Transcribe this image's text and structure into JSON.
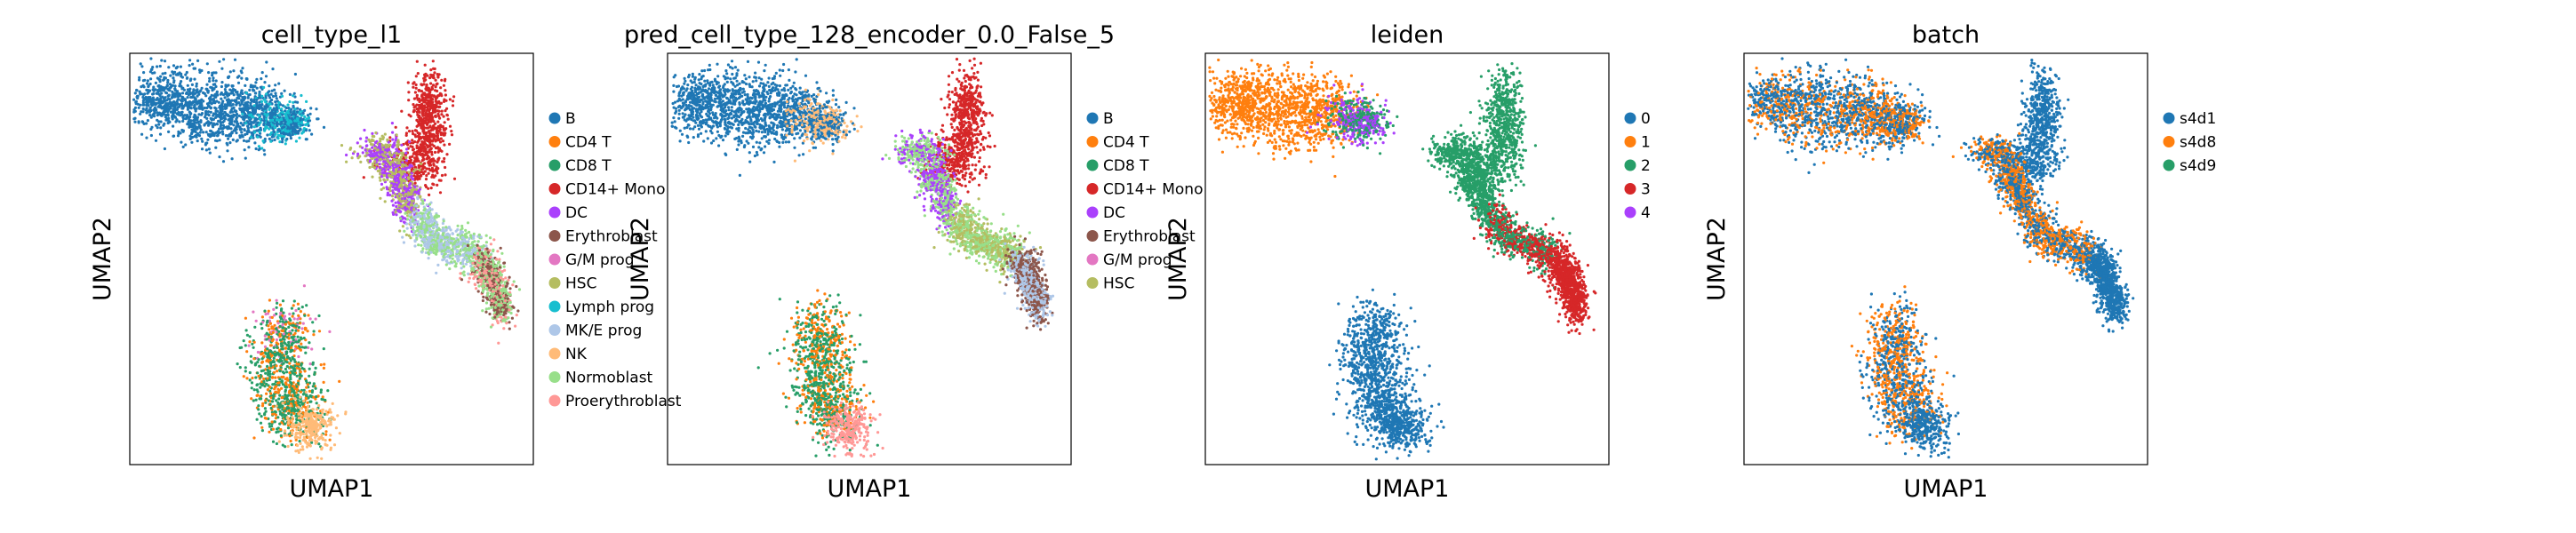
{
  "chart_data": [
    {
      "type": "scatter",
      "title": "cell_type_l1",
      "xlabel": "UMAP1",
      "ylabel": "UMAP2",
      "grid": false,
      "ticks": false,
      "legend_placement": "right-outside",
      "series": [
        {
          "name": "B",
          "color": "#1f77b4"
        },
        {
          "name": "CD4 T",
          "color": "#ff7f0e"
        },
        {
          "name": "CD8 T",
          "color": "#279e68"
        },
        {
          "name": "CD14+ Mono",
          "color": "#d62728"
        },
        {
          "name": "DC",
          "color": "#aa40fc"
        },
        {
          "name": "Erythroblast",
          "color": "#8c564b"
        },
        {
          "name": "G/M prog",
          "color": "#e377c2"
        },
        {
          "name": "HSC",
          "color": "#b5bd61"
        },
        {
          "name": "Lymph prog",
          "color": "#17becf"
        },
        {
          "name": "MK/E prog",
          "color": "#aec7e8"
        },
        {
          "name": "NK",
          "color": "#ffbb78"
        },
        {
          "name": "Normoblast",
          "color": "#98df8a"
        },
        {
          "name": "Proerythroblast",
          "color": "#ff9896"
        }
      ]
    },
    {
      "type": "scatter",
      "title": "pred_cell_type_128_encoder_0.0_False_5",
      "xlabel": "UMAP1",
      "ylabel": "UMAP2",
      "grid": false,
      "ticks": false,
      "legend_placement": "right-outside",
      "series": [
        {
          "name": "B",
          "color": "#1f77b4"
        },
        {
          "name": "CD4 T",
          "color": "#ff7f0e"
        },
        {
          "name": "CD8 T",
          "color": "#279e68"
        },
        {
          "name": "CD14+ Mono",
          "color": "#d62728"
        },
        {
          "name": "DC",
          "color": "#aa40fc"
        },
        {
          "name": "Erythroblast",
          "color": "#8c564b"
        },
        {
          "name": "G/M prog",
          "color": "#e377c2"
        },
        {
          "name": "HSC",
          "color": "#b5bd61"
        }
      ]
    },
    {
      "type": "scatter",
      "title": "leiden",
      "xlabel": "UMAP1",
      "ylabel": "UMAP2",
      "grid": false,
      "ticks": false,
      "legend_placement": "right-outside",
      "series": [
        {
          "name": "0",
          "color": "#1f77b4"
        },
        {
          "name": "1",
          "color": "#ff7f0e"
        },
        {
          "name": "2",
          "color": "#279e68"
        },
        {
          "name": "3",
          "color": "#d62728"
        },
        {
          "name": "4",
          "color": "#aa40fc"
        }
      ]
    },
    {
      "type": "scatter",
      "title": "batch",
      "xlabel": "UMAP1",
      "ylabel": "UMAP2",
      "grid": false,
      "ticks": false,
      "legend_placement": "right-outside",
      "series": [
        {
          "name": "s4d1",
          "color": "#1f77b4"
        },
        {
          "name": "s4d8",
          "color": "#ff7f0e"
        },
        {
          "name": "s4d9",
          "color": "#279e68"
        }
      ]
    }
  ]
}
